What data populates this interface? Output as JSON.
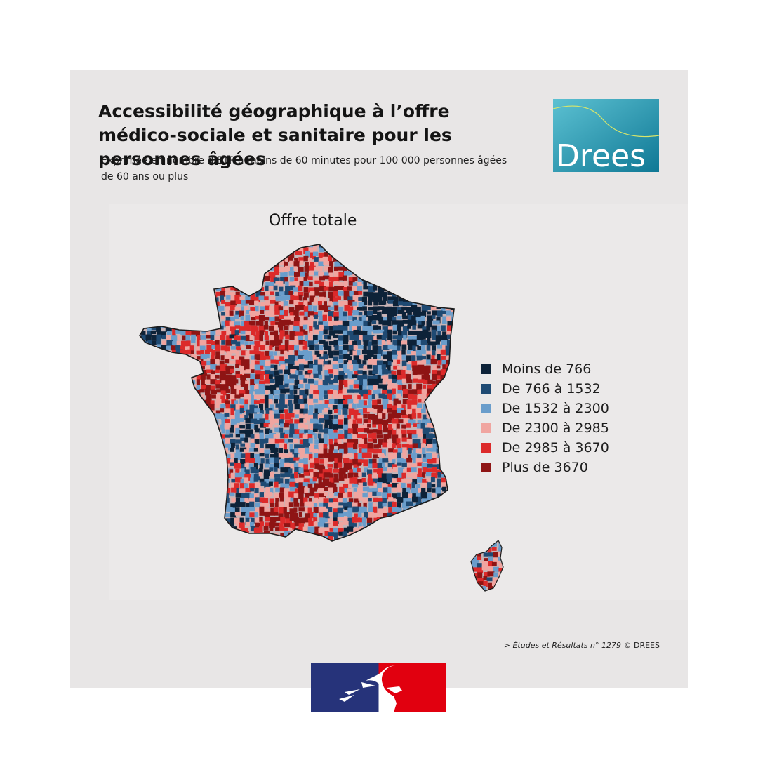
{
  "header": {
    "title": "Accessibilité géographique à l’offre médico-sociale et sanitaire pour les personnes âgées",
    "subtitle": "Exprimée en nombre d’ETP à moins de 60 minutes pour 100 000 personnes âgées de 60 ans ou plus",
    "logo_text": "Drees"
  },
  "map": {
    "title": "Offre totale",
    "regions": [
      "France métropolitaine",
      "Corse"
    ],
    "legend": [
      {
        "label": "Moins de 766",
        "color": "#0d2238"
      },
      {
        "label": "De 766 à 1532",
        "color": "#1f4a73"
      },
      {
        "label": "De 1532 à 2300",
        "color": "#6a9dcb"
      },
      {
        "label": "De 2300 à 2985",
        "color": "#f0a5a0"
      },
      {
        "label": "De 2985 à 3670",
        "color": "#dc2a2a"
      },
      {
        "label": "Plus de 3670",
        "color": "#8e1414"
      }
    ]
  },
  "footer": {
    "source_prefix": ">",
    "source_ref": "Études et Résultats n° 1279",
    "source_copy": "© DREES"
  },
  "colors": {
    "card_bg": "#e8e6e6",
    "logo_teal": "#1c8ca6",
    "logo_yellow": "#e3e02a",
    "flag_blue": "#26337a",
    "flag_red": "#e1000f"
  }
}
